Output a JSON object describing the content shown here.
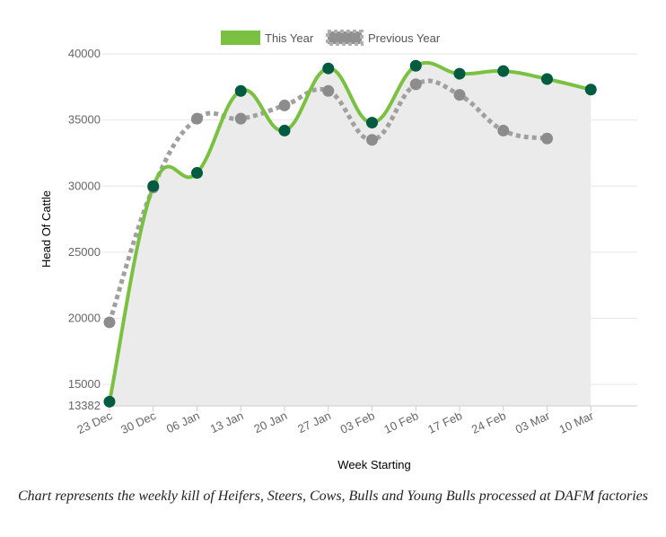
{
  "chart_data": {
    "type": "line",
    "title": "",
    "xlabel": "Week Starting",
    "ylabel": "Head Of Cattle",
    "categories": [
      "23 Dec",
      "30 Dec",
      "06 Jan",
      "13 Jan",
      "20 Jan",
      "27 Jan",
      "03 Feb",
      "10 Feb",
      "17 Feb",
      "24 Feb",
      "03 Mar",
      "10 Mar"
    ],
    "ylim": [
      13382,
      40000
    ],
    "yticks": [
      "13382",
      "15000",
      "20000",
      "25000",
      "30000",
      "35000",
      "40000"
    ],
    "yticks_values": [
      13382,
      15000,
      20000,
      25000,
      30000,
      35000,
      40000
    ],
    "grid": true,
    "legend_position": "top-center",
    "series": [
      {
        "name": "This Year",
        "color": "#7ac142",
        "marker_color": "#005b40",
        "style": "solid",
        "fill": "#ebebeb",
        "values": [
          13700,
          30000,
          31000,
          37200,
          34200,
          38900,
          34800,
          39100,
          38500,
          38700,
          38100,
          37300
        ]
      },
      {
        "name": "Previous Year",
        "color": "#a0a0a0",
        "marker_color": "#8c8c8c",
        "style": "dashed",
        "values": [
          19700,
          29900,
          35100,
          35100,
          36100,
          37200,
          33500,
          37700,
          36900,
          34200,
          33600,
          null
        ]
      }
    ]
  },
  "caption": "Chart represents the weekly kill of Heifers, Steers, Cows, Bulls and Young Bulls processed at DAFM factories"
}
